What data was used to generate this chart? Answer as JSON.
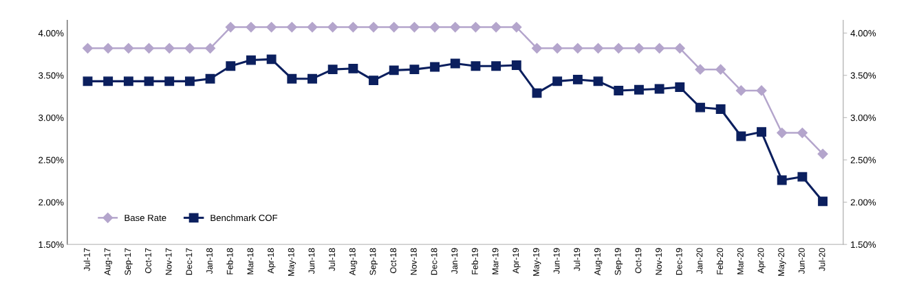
{
  "chart_data": {
    "type": "line",
    "categories": [
      "Jul-17",
      "Aug-17",
      "Sep-17",
      "Oct-17",
      "Nov-17",
      "Dec-17",
      "Jan-18",
      "Feb-18",
      "Mar-18",
      "Apr-18",
      "May-18",
      "Jun-18",
      "Jul-18",
      "Aug-18",
      "Sep-18",
      "Oct-18",
      "Nov-18",
      "Dec-18",
      "Jan-19",
      "Feb-19",
      "Mar-19",
      "Apr-19",
      "May-19",
      "Jun-19",
      "Jul-19",
      "Aug-19",
      "Sep-19",
      "Oct-19",
      "Nov-19",
      "Dec-19",
      "Jan-20",
      "Feb-20",
      "Mar-20",
      "Apr-20",
      "May-20",
      "Jun-20",
      "Jul-20"
    ],
    "series": [
      {
        "name": "Base Rate",
        "color": "#b4a5cc",
        "marker": "diamond",
        "values": [
          3.82,
          3.82,
          3.82,
          3.82,
          3.82,
          3.82,
          3.82,
          4.07,
          4.07,
          4.07,
          4.07,
          4.07,
          4.07,
          4.07,
          4.07,
          4.07,
          4.07,
          4.07,
          4.07,
          4.07,
          4.07,
          4.07,
          3.82,
          3.82,
          3.82,
          3.82,
          3.82,
          3.82,
          3.82,
          3.82,
          3.57,
          3.57,
          3.32,
          3.32,
          2.82,
          2.82,
          2.57
        ]
      },
      {
        "name": "Benchmark COF",
        "color": "#0b1f5e",
        "marker": "square",
        "values": [
          3.43,
          3.43,
          3.43,
          3.43,
          3.43,
          3.43,
          3.46,
          3.61,
          3.68,
          3.69,
          3.46,
          3.46,
          3.57,
          3.58,
          3.44,
          3.56,
          3.57,
          3.6,
          3.64,
          3.61,
          3.61,
          3.62,
          3.29,
          3.43,
          3.45,
          3.43,
          3.32,
          3.33,
          3.34,
          3.36,
          3.12,
          3.1,
          2.78,
          2.83,
          2.26,
          2.3,
          2.01
        ]
      }
    ],
    "ylim": [
      1.5,
      4.15
    ],
    "yticks": [
      {
        "value": 1.5,
        "label": "1.50%"
      },
      {
        "value": 2.0,
        "label": "2.00%"
      },
      {
        "value": 2.5,
        "label": "2.50%"
      },
      {
        "value": 3.0,
        "label": "3.00%"
      },
      {
        "value": 3.5,
        "label": "3.50%"
      },
      {
        "value": 4.0,
        "label": "4.00%"
      }
    ],
    "y2lim": [
      1.5,
      4.15
    ],
    "y2ticks": [
      {
        "value": 1.5,
        "label": "1.50%"
      },
      {
        "value": 2.0,
        "label": "2.00%"
      },
      {
        "value": 2.5,
        "label": "2.50%"
      },
      {
        "value": 3.0,
        "label": "3.00%"
      },
      {
        "value": 3.5,
        "label": "3.50%"
      },
      {
        "value": 4.0,
        "label": "4.00%"
      }
    ],
    "grid": false,
    "legend": "bottom left",
    "line_style": "solid"
  }
}
